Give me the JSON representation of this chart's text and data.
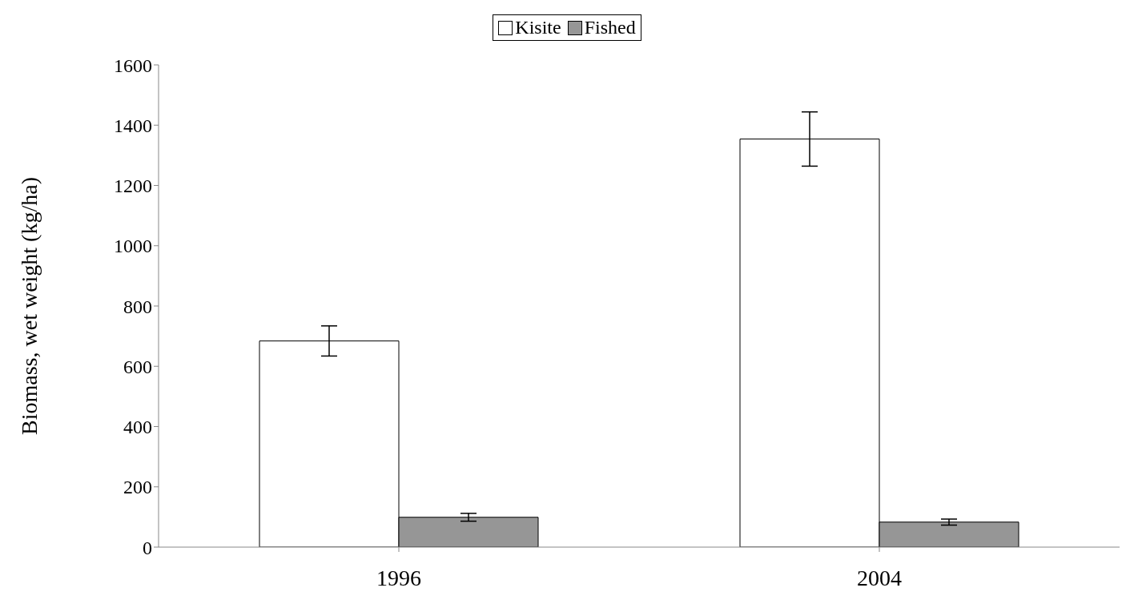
{
  "chart_data": {
    "type": "bar",
    "ylabel": "Biomass, wet weight (kg/ha)",
    "categories": [
      "1996",
      "2004"
    ],
    "series": [
      {
        "name": "Kisite",
        "color": "#ffffff",
        "values": [
          684,
          1354
        ],
        "errors": [
          50,
          90
        ]
      },
      {
        "name": "Fished",
        "color": "#969696",
        "values": [
          99,
          83
        ],
        "errors": [
          13,
          10
        ]
      }
    ],
    "ylim": [
      0,
      1600
    ],
    "yticks": [
      0,
      200,
      400,
      600,
      800,
      1000,
      1200,
      1400,
      1600
    ],
    "grid": false,
    "legend": "top"
  }
}
